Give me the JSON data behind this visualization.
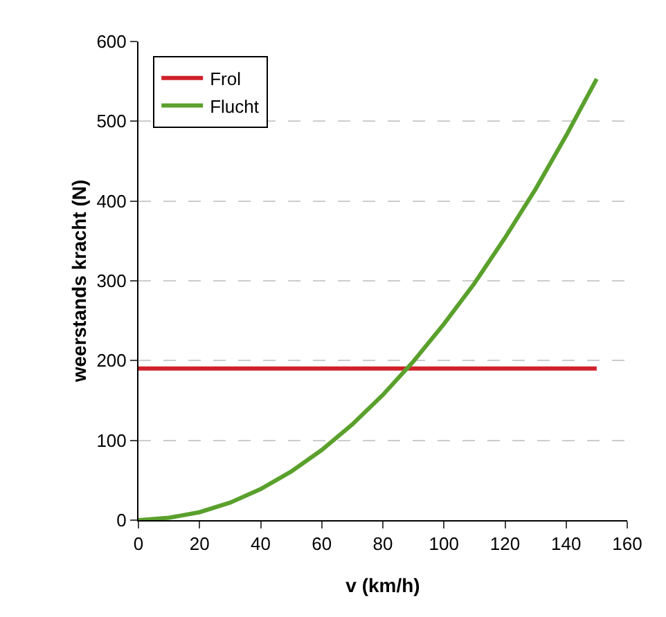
{
  "chart_data": {
    "type": "line",
    "xlabel": "v (km/h)",
    "ylabel": "weerstands kracht (N)",
    "x": [
      0,
      10,
      20,
      30,
      40,
      50,
      60,
      70,
      80,
      90,
      100,
      110,
      120,
      130,
      140,
      150
    ],
    "series": [
      {
        "name": "Frol",
        "color": "#d0202a",
        "values": [
          190,
          190,
          190,
          190,
          190,
          190,
          190,
          190,
          190,
          190,
          190,
          190,
          190,
          190,
          190,
          190
        ]
      },
      {
        "name": "Flucht",
        "color": "#5aa02c",
        "values": [
          0,
          3,
          10,
          22,
          39,
          61,
          88,
          120,
          157,
          199,
          246,
          297,
          354,
          415,
          482,
          553
        ]
      }
    ],
    "xlim": [
      0,
      160
    ],
    "xticks": [
      0,
      20,
      40,
      60,
      80,
      100,
      120,
      140,
      160
    ],
    "ylim": [
      0,
      600
    ],
    "yticks": [
      0,
      100,
      200,
      300,
      400,
      500,
      600
    ],
    "grid": "y",
    "legend": "top left",
    "marker": "none",
    "line_style": "solid"
  }
}
